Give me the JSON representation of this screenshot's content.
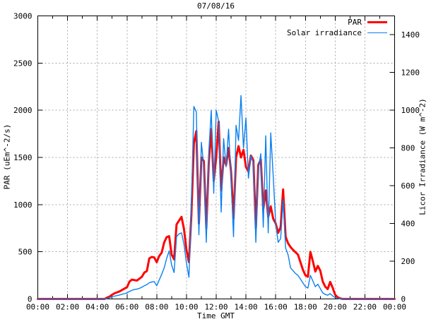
{
  "chart_data": {
    "type": "line",
    "title": "07/08/16",
    "xlabel": "Time GMT",
    "ylabel_left": "PAR (uEm^-2/s)",
    "ylabel_right": "Licor Irradiance (W m^-2)",
    "background_color": "#ffffff",
    "border_color": "#000000",
    "grid": {
      "show": true,
      "color": "#a8a8a8",
      "dash": "2,3"
    },
    "x_axis": {
      "range_minutes": [
        0,
        1440
      ],
      "major_step_minutes": 120,
      "minor_step_minutes": 60,
      "major_tick_labels": [
        "00:00",
        "02:00",
        "04:00",
        "06:00",
        "08:00",
        "10:00",
        "12:00",
        "14:00",
        "16:00",
        "18:00",
        "20:00",
        "22:00",
        "00:00"
      ]
    },
    "y_axis_left": {
      "min": 0,
      "max": 3000,
      "tick_step": 500,
      "ticks": [
        "0",
        "500",
        "1000",
        "1500",
        "2000",
        "2500",
        "3000"
      ],
      "gridlines_at": [
        500,
        1000,
        1500,
        2000,
        2500
      ]
    },
    "y_axis_right": {
      "min": 0,
      "max": 1500,
      "tick_step": 200,
      "ticks": [
        "0",
        "200",
        "400",
        "600",
        "800",
        "1000",
        "1200",
        "1400"
      ]
    },
    "legend": {
      "position": "top-right-inside",
      "entries": [
        {
          "label": "PAR",
          "color": "#ff0000",
          "line_width": 3.5
        },
        {
          "label": "Solar irradiance",
          "color": "#0a80f0",
          "line_width": 1.4
        }
      ]
    },
    "sample_interval_minutes": 10,
    "x_minutes": [
      0,
      10,
      20,
      30,
      40,
      50,
      60,
      70,
      80,
      90,
      100,
      110,
      120,
      130,
      140,
      150,
      160,
      170,
      180,
      190,
      200,
      210,
      220,
      230,
      240,
      250,
      260,
      270,
      280,
      290,
      300,
      310,
      320,
      330,
      340,
      350,
      360,
      370,
      380,
      390,
      400,
      410,
      420,
      430,
      440,
      450,
      460,
      470,
      480,
      490,
      500,
      510,
      520,
      530,
      540,
      550,
      560,
      570,
      580,
      590,
      600,
      610,
      620,
      630,
      640,
      650,
      660,
      670,
      680,
      690,
      700,
      710,
      720,
      730,
      740,
      750,
      760,
      770,
      780,
      790,
      800,
      810,
      820,
      830,
      840,
      850,
      860,
      870,
      880,
      890,
      900,
      910,
      920,
      930,
      940,
      950,
      960,
      970,
      980,
      990,
      1000,
      1010,
      1020,
      1030,
      1040,
      1050,
      1060,
      1070,
      1080,
      1090,
      1100,
      1110,
      1120,
      1130,
      1140,
      1150,
      1160,
      1170,
      1180,
      1190,
      1200,
      1210,
      1220,
      1230,
      1240,
      1250,
      1260,
      1270,
      1280,
      1290,
      1300,
      1310,
      1320,
      1330,
      1340,
      1350,
      1360,
      1370,
      1380,
      1390,
      1400,
      1410,
      1420,
      1430,
      1440
    ],
    "series": [
      {
        "name": "PAR",
        "axis": "left",
        "units": "uEm^-2/s",
        "color": "#ff0000",
        "line_width": 3,
        "values": [
          0,
          0,
          0,
          0,
          0,
          0,
          0,
          0,
          0,
          0,
          0,
          0,
          0,
          0,
          0,
          0,
          0,
          0,
          0,
          0,
          0,
          0,
          0,
          0,
          0,
          0,
          0,
          0,
          15,
          25,
          45,
          60,
          70,
          80,
          95,
          110,
          125,
          185,
          205,
          200,
          195,
          215,
          235,
          280,
          295,
          430,
          445,
          440,
          390,
          455,
          490,
          600,
          655,
          665,
          470,
          420,
          790,
          830,
          870,
          740,
          520,
          390,
          900,
          1650,
          1780,
          800,
          1500,
          1460,
          750,
          1450,
          1800,
          1250,
          1500,
          1880,
          1150,
          1500,
          1420,
          1600,
          1350,
          850,
          1500,
          1620,
          1500,
          1580,
          1400,
          1350,
          1520,
          1470,
          750,
          1420,
          1480,
          950,
          1150,
          870,
          980,
          850,
          800,
          700,
          760,
          1160,
          660,
          590,
          550,
          520,
          495,
          470,
          390,
          310,
          250,
          235,
          500,
          400,
          290,
          350,
          300,
          185,
          130,
          105,
          180,
          120,
          45,
          18,
          6,
          0,
          0,
          0,
          0,
          0,
          0,
          0,
          0,
          0,
          0,
          0,
          0,
          0,
          0,
          0,
          0,
          0,
          0,
          0,
          0,
          0,
          0
        ]
      },
      {
        "name": "Solar irradiance",
        "axis": "right",
        "units": "W m^-2",
        "color": "#0a80f0",
        "line_width": 1.4,
        "values": [
          0,
          0,
          0,
          0,
          0,
          0,
          0,
          0,
          0,
          0,
          0,
          0,
          0,
          0,
          0,
          0,
          0,
          0,
          0,
          0,
          0,
          0,
          0,
          0,
          0,
          0,
          0,
          0,
          3,
          6,
          12,
          15,
          18,
          21,
          25,
          28,
          32,
          40,
          46,
          50,
          52,
          56,
          62,
          70,
          76,
          86,
          90,
          92,
          70,
          100,
          130,
          165,
          215,
          255,
          180,
          140,
          330,
          345,
          350,
          290,
          190,
          115,
          500,
          1020,
          990,
          340,
          830,
          700,
          300,
          780,
          1000,
          560,
          1000,
          940,
          460,
          850,
          700,
          900,
          640,
          330,
          920,
          840,
          1078,
          800,
          960,
          640,
          760,
          720,
          300,
          690,
          770,
          380,
          865,
          350,
          880,
          650,
          400,
          300,
          320,
          525,
          270,
          235,
          165,
          150,
          135,
          125,
          105,
          85,
          65,
          58,
          125,
          95,
          65,
          78,
          55,
          32,
          24,
          20,
          28,
          16,
          7,
          3,
          1,
          0,
          0,
          0,
          0,
          0,
          0,
          0,
          0,
          0,
          0,
          0,
          0,
          0,
          0,
          0,
          0,
          0,
          0,
          0,
          0,
          0,
          0
        ]
      }
    ]
  }
}
